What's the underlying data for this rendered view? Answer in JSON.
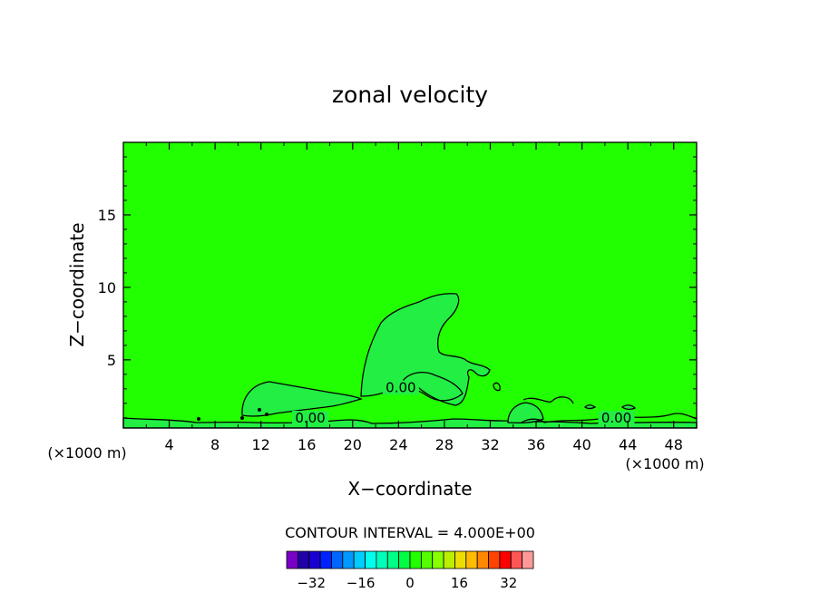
{
  "chart_data": {
    "type": "contour",
    "title": "zonal velocity",
    "xlabel": "X−coordinate",
    "ylabel": "Z−coordinate",
    "x_unit_label": "(×1000 m)",
    "y_unit_label": "(×1000 m)",
    "xlim": [
      0,
      50
    ],
    "ylim": [
      0.3,
      20
    ],
    "x_ticks": [
      4,
      8,
      12,
      16,
      20,
      24,
      28,
      32,
      36,
      40,
      44,
      48
    ],
    "y_ticks": [
      5,
      10,
      15
    ],
    "contour_interval_label": "CONTOUR INTERVAL = 4.000E+00",
    "contour_labels": [
      {
        "text": "0.00",
        "x": 24.2,
        "z": 2.9
      },
      {
        "text": "0.00",
        "x": 16.3,
        "z": 0.8
      },
      {
        "text": "0.00",
        "x": 43.0,
        "z": 0.8
      }
    ],
    "background_color": "#22ff00",
    "anomaly_color": "#22ee44",
    "colorbar": {
      "min": -40,
      "max": 40,
      "step": 4,
      "tick_labels": [
        "−32",
        "−16",
        "0",
        "16",
        "32"
      ],
      "tick_values": [
        -32,
        -16,
        0,
        16,
        32
      ],
      "colors": [
        "#7a00c8",
        "#2200a8",
        "#1a00d0",
        "#0022ff",
        "#0066ff",
        "#0099ff",
        "#00ccff",
        "#00ffee",
        "#00ffbb",
        "#00ff88",
        "#00ff44",
        "#22ff00",
        "#55ff00",
        "#88ff00",
        "#bbee00",
        "#eedd00",
        "#ffbb00",
        "#ff8800",
        "#ff4400",
        "#ff0000",
        "#ff5555",
        "#ff9999"
      ]
    }
  }
}
